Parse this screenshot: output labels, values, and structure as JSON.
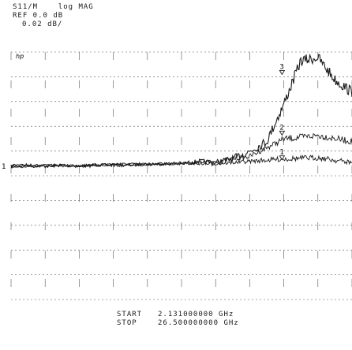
{
  "header": {
    "param": "S11/M",
    "format": "log MAG",
    "ref": "REF 0.0 dB",
    "scale": "0.02 dB/",
    "top_marker": "hp"
  },
  "footer": {
    "start_label": "START",
    "start_value": "2.131000000 GHz",
    "stop_label": "STOP",
    "stop_value": "26.500000000 GHz"
  },
  "chart_data": {
    "type": "line",
    "title": "",
    "xlabel": "",
    "ylabel": "",
    "x_start_ghz": 2.131,
    "x_stop_ghz": 26.5,
    "ref_db": 0.0,
    "db_per_div": 0.02,
    "grid": true,
    "ref_line_label": "1",
    "markers": [
      {
        "label": "1",
        "freq_ghz": 21.5,
        "value_db": 0.004
      },
      {
        "label": "2",
        "freq_ghz": 21.5,
        "value_db": 0.024
      },
      {
        "label": "3",
        "freq_ghz": 21.5,
        "value_db": 0.073
      }
    ],
    "series": [
      {
        "values": [
          {
            "x": 2.13,
            "y": 0.0
          },
          {
            "x": 3.35,
            "y": 0.001
          },
          {
            "x": 4.57,
            "y": 0.0
          },
          {
            "x": 5.79,
            "y": 0.001
          },
          {
            "x": 7.0,
            "y": 0.0
          },
          {
            "x": 8.22,
            "y": 0.001
          },
          {
            "x": 9.44,
            "y": 0.001
          },
          {
            "x": 10.66,
            "y": 0.001
          },
          {
            "x": 11.87,
            "y": 0.002
          },
          {
            "x": 13.09,
            "y": 0.002
          },
          {
            "x": 14.31,
            "y": 0.002
          },
          {
            "x": 15.53,
            "y": 0.004
          },
          {
            "x": 16.75,
            "y": 0.003
          },
          {
            "x": 17.96,
            "y": 0.006
          },
          {
            "x": 19.18,
            "y": 0.012
          },
          {
            "x": 20.4,
            "y": 0.02
          },
          {
            "x": 21.62,
            "y": 0.05
          },
          {
            "x": 22.83,
            "y": 0.085
          },
          {
            "x": 24.05,
            "y": 0.088
          },
          {
            "x": 25.27,
            "y": 0.07
          },
          {
            "x": 26.49,
            "y": 0.06
          }
        ]
      },
      {
        "values": [
          {
            "x": 2.13,
            "y": 0.001
          },
          {
            "x": 4.57,
            "y": 0.001
          },
          {
            "x": 7.0,
            "y": 0.001
          },
          {
            "x": 9.44,
            "y": 0.002
          },
          {
            "x": 11.87,
            "y": 0.002
          },
          {
            "x": 14.31,
            "y": 0.003
          },
          {
            "x": 16.75,
            "y": 0.004
          },
          {
            "x": 19.18,
            "y": 0.008
          },
          {
            "x": 21.62,
            "y": 0.022
          },
          {
            "x": 24.05,
            "y": 0.025
          },
          {
            "x": 26.49,
            "y": 0.02
          }
        ]
      },
      {
        "values": [
          {
            "x": 2.13,
            "y": -0.001
          },
          {
            "x": 4.57,
            "y": 0.0
          },
          {
            "x": 7.0,
            "y": 0.0
          },
          {
            "x": 9.44,
            "y": 0.001
          },
          {
            "x": 11.87,
            "y": 0.001
          },
          {
            "x": 14.31,
            "y": 0.002
          },
          {
            "x": 16.75,
            "y": 0.002
          },
          {
            "x": 19.18,
            "y": 0.004
          },
          {
            "x": 21.62,
            "y": 0.006
          },
          {
            "x": 24.05,
            "y": 0.007
          },
          {
            "x": 26.49,
            "y": 0.003
          }
        ]
      }
    ]
  }
}
